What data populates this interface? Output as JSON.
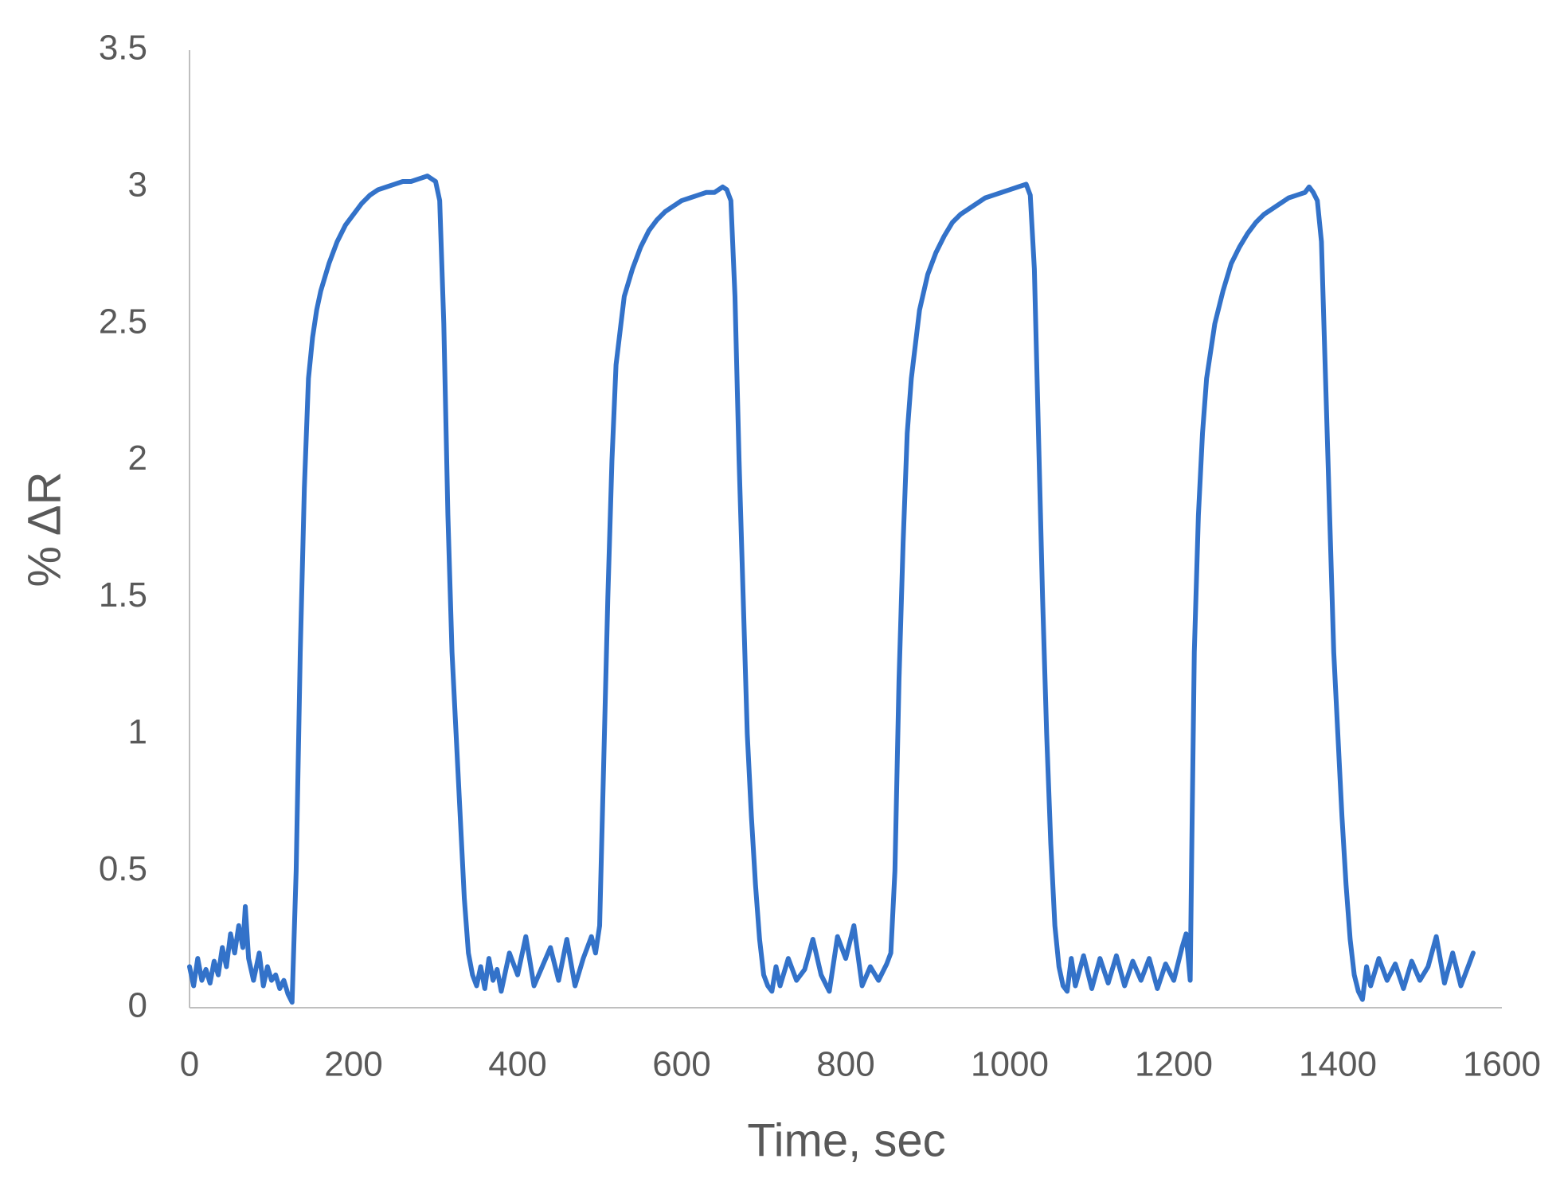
{
  "chart_data": {
    "type": "line",
    "x_label": "Time, sec",
    "y_label": "% ΔR",
    "xlim": [
      0,
      1600
    ],
    "xticks": [
      0,
      200,
      400,
      600,
      800,
      1000,
      1200,
      1400,
      1600
    ],
    "ylim": [
      0,
      3.5
    ],
    "yticks": [
      0,
      0.5,
      1,
      1.5,
      2,
      2.5,
      3,
      3.5
    ],
    "grid": false,
    "series": [
      {
        "color": "#3372c9",
        "x": [
          0,
          5,
          10,
          15,
          20,
          25,
          30,
          35,
          40,
          45,
          50,
          55,
          60,
          65,
          68,
          72,
          78,
          85,
          90,
          95,
          100,
          105,
          110,
          115,
          120,
          125,
          130,
          135,
          140,
          145,
          150,
          155,
          160,
          170,
          180,
          190,
          200,
          210,
          220,
          230,
          240,
          250,
          260,
          270,
          280,
          290,
          300,
          305,
          310,
          315,
          320,
          325,
          330,
          335,
          340,
          345,
          350,
          355,
          360,
          365,
          370,
          375,
          380,
          390,
          400,
          410,
          420,
          430,
          440,
          450,
          460,
          470,
          480,
          490,
          495,
          500,
          505,
          510,
          515,
          520,
          530,
          540,
          550,
          560,
          570,
          580,
          590,
          600,
          610,
          620,
          630,
          640,
          650,
          655,
          660,
          665,
          670,
          675,
          680,
          685,
          690,
          695,
          700,
          705,
          710,
          715,
          720,
          730,
          740,
          750,
          760,
          770,
          780,
          790,
          800,
          810,
          820,
          830,
          840,
          850,
          855,
          860,
          865,
          870,
          875,
          880,
          890,
          900,
          910,
          920,
          930,
          940,
          950,
          960,
          970,
          980,
          990,
          1000,
          1010,
          1020,
          1025,
          1030,
          1035,
          1040,
          1045,
          1050,
          1055,
          1060,
          1065,
          1070,
          1075,
          1080,
          1090,
          1100,
          1110,
          1120,
          1130,
          1140,
          1150,
          1160,
          1170,
          1180,
          1190,
          1200,
          1210,
          1215,
          1220,
          1222,
          1225,
          1230,
          1235,
          1240,
          1250,
          1260,
          1270,
          1280,
          1290,
          1300,
          1310,
          1320,
          1330,
          1340,
          1350,
          1360,
          1365,
          1370,
          1375,
          1380,
          1385,
          1390,
          1395,
          1400,
          1405,
          1410,
          1415,
          1420,
          1425,
          1430,
          1435,
          1440,
          1450,
          1460,
          1470,
          1480,
          1490,
          1500,
          1510,
          1520,
          1530,
          1540,
          1550,
          1560,
          1565
        ],
        "values": [
          0.15,
          0.08,
          0.18,
          0.1,
          0.14,
          0.09,
          0.17,
          0.12,
          0.22,
          0.15,
          0.27,
          0.2,
          0.3,
          0.22,
          0.37,
          0.18,
          0.1,
          0.2,
          0.08,
          0.15,
          0.1,
          0.12,
          0.07,
          0.1,
          0.05,
          0.02,
          0.5,
          1.3,
          1.9,
          2.3,
          2.45,
          2.55,
          2.62,
          2.72,
          2.8,
          2.86,
          2.9,
          2.94,
          2.97,
          2.99,
          3.0,
          3.01,
          3.02,
          3.02,
          3.03,
          3.04,
          3.02,
          2.95,
          2.5,
          1.8,
          1.3,
          1.0,
          0.7,
          0.4,
          0.2,
          0.12,
          0.08,
          0.15,
          0.07,
          0.18,
          0.1,
          0.14,
          0.06,
          0.2,
          0.12,
          0.26,
          0.08,
          0.15,
          0.22,
          0.1,
          0.25,
          0.08,
          0.18,
          0.26,
          0.2,
          0.3,
          0.9,
          1.5,
          2.0,
          2.35,
          2.6,
          2.7,
          2.78,
          2.84,
          2.88,
          2.91,
          2.93,
          2.95,
          2.96,
          2.97,
          2.98,
          2.98,
          3.0,
          2.99,
          2.95,
          2.6,
          2.0,
          1.5,
          1.0,
          0.7,
          0.45,
          0.25,
          0.12,
          0.08,
          0.06,
          0.15,
          0.08,
          0.18,
          0.1,
          0.14,
          0.25,
          0.12,
          0.06,
          0.26,
          0.18,
          0.3,
          0.08,
          0.15,
          0.1,
          0.16,
          0.2,
          0.5,
          1.2,
          1.7,
          2.1,
          2.3,
          2.55,
          2.68,
          2.76,
          2.82,
          2.87,
          2.9,
          2.92,
          2.94,
          2.96,
          2.97,
          2.98,
          2.99,
          3.0,
          3.01,
          2.97,
          2.7,
          2.1,
          1.5,
          1.0,
          0.6,
          0.3,
          0.15,
          0.08,
          0.06,
          0.18,
          0.08,
          0.19,
          0.07,
          0.18,
          0.09,
          0.19,
          0.08,
          0.17,
          0.1,
          0.18,
          0.07,
          0.16,
          0.1,
          0.22,
          0.27,
          0.1,
          0.6,
          1.3,
          1.8,
          2.1,
          2.3,
          2.5,
          2.62,
          2.72,
          2.78,
          2.83,
          2.87,
          2.9,
          2.92,
          2.94,
          2.96,
          2.97,
          2.98,
          3.0,
          2.98,
          2.95,
          2.8,
          2.3,
          1.8,
          1.3,
          1.0,
          0.7,
          0.45,
          0.25,
          0.12,
          0.06,
          0.03,
          0.15,
          0.08,
          0.18,
          0.1,
          0.16,
          0.07,
          0.17,
          0.1,
          0.15,
          0.26,
          0.09,
          0.2,
          0.08,
          0.16,
          0.2
        ]
      }
    ]
  }
}
